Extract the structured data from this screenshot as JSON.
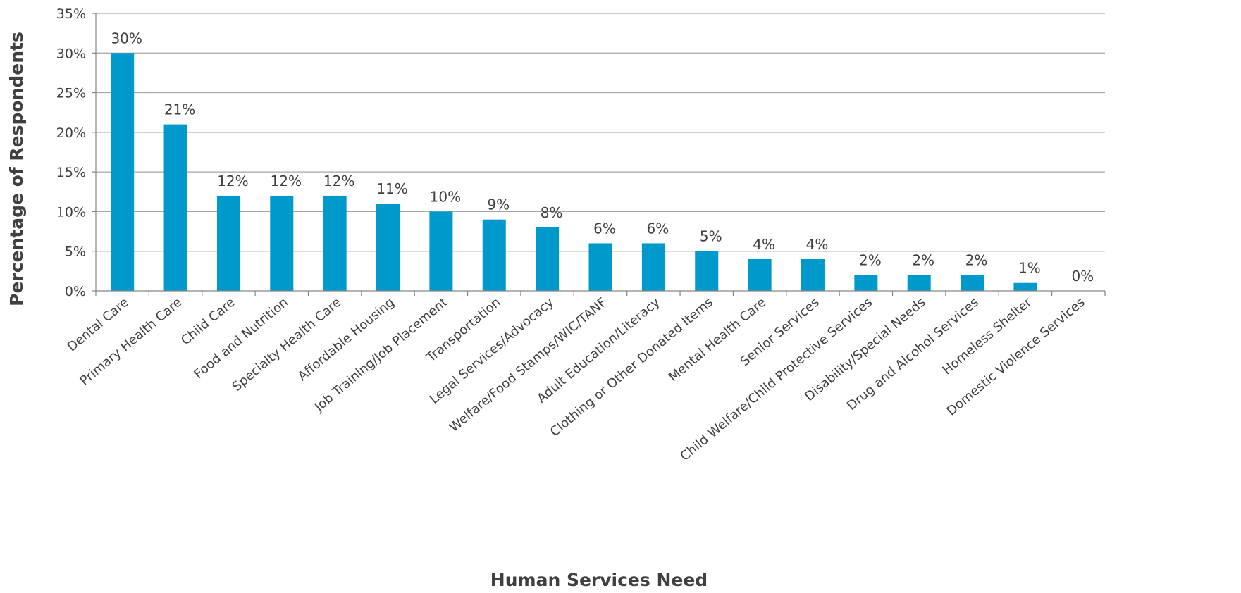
{
  "chart_data": {
    "type": "bar",
    "title": "",
    "xlabel": "Human Services Need",
    "ylabel": "Percentage of Respondents",
    "ylim": [
      0,
      35
    ],
    "yticks": [
      0,
      5,
      10,
      15,
      20,
      25,
      30,
      35
    ],
    "ytick_labels": [
      "0%",
      "5%",
      "10%",
      "15%",
      "20%",
      "25%",
      "30%",
      "35%"
    ],
    "grid": true,
    "legend": "none",
    "bar_color": "#0099CC",
    "grid_color": "#A6A6A6",
    "categories": [
      "Dental Care",
      "Primary Health Care",
      "Child Care",
      "Food and Nutrition",
      "Specialty Health Care",
      "Affordable Housing",
      "Job Training/Job Placement",
      "Transportation",
      "Legal Services/Advocacy",
      "Welfare/Food Stamps/WIC/TANF",
      "Adult Education/Literacy",
      "Clothing or Other Donated Items",
      "Mental Health Care",
      "Senior Services",
      "Child Welfare/Child Protective Services",
      "Disability/Special Needs",
      "Drug and Alcohol Services",
      "Homeless Shelter",
      "Domestic Violence Services"
    ],
    "values": [
      30,
      21,
      12,
      12,
      12,
      11,
      10,
      9,
      8,
      6,
      6,
      5,
      4,
      4,
      2,
      2,
      2,
      1,
      0
    ],
    "data_labels": [
      "30%",
      "21%",
      "12%",
      "12%",
      "12%",
      "11%",
      "10%",
      "9%",
      "8%",
      "6%",
      "6%",
      "5%",
      "4%",
      "4%",
      "2%",
      "2%",
      "2%",
      "1%",
      "0%"
    ]
  }
}
